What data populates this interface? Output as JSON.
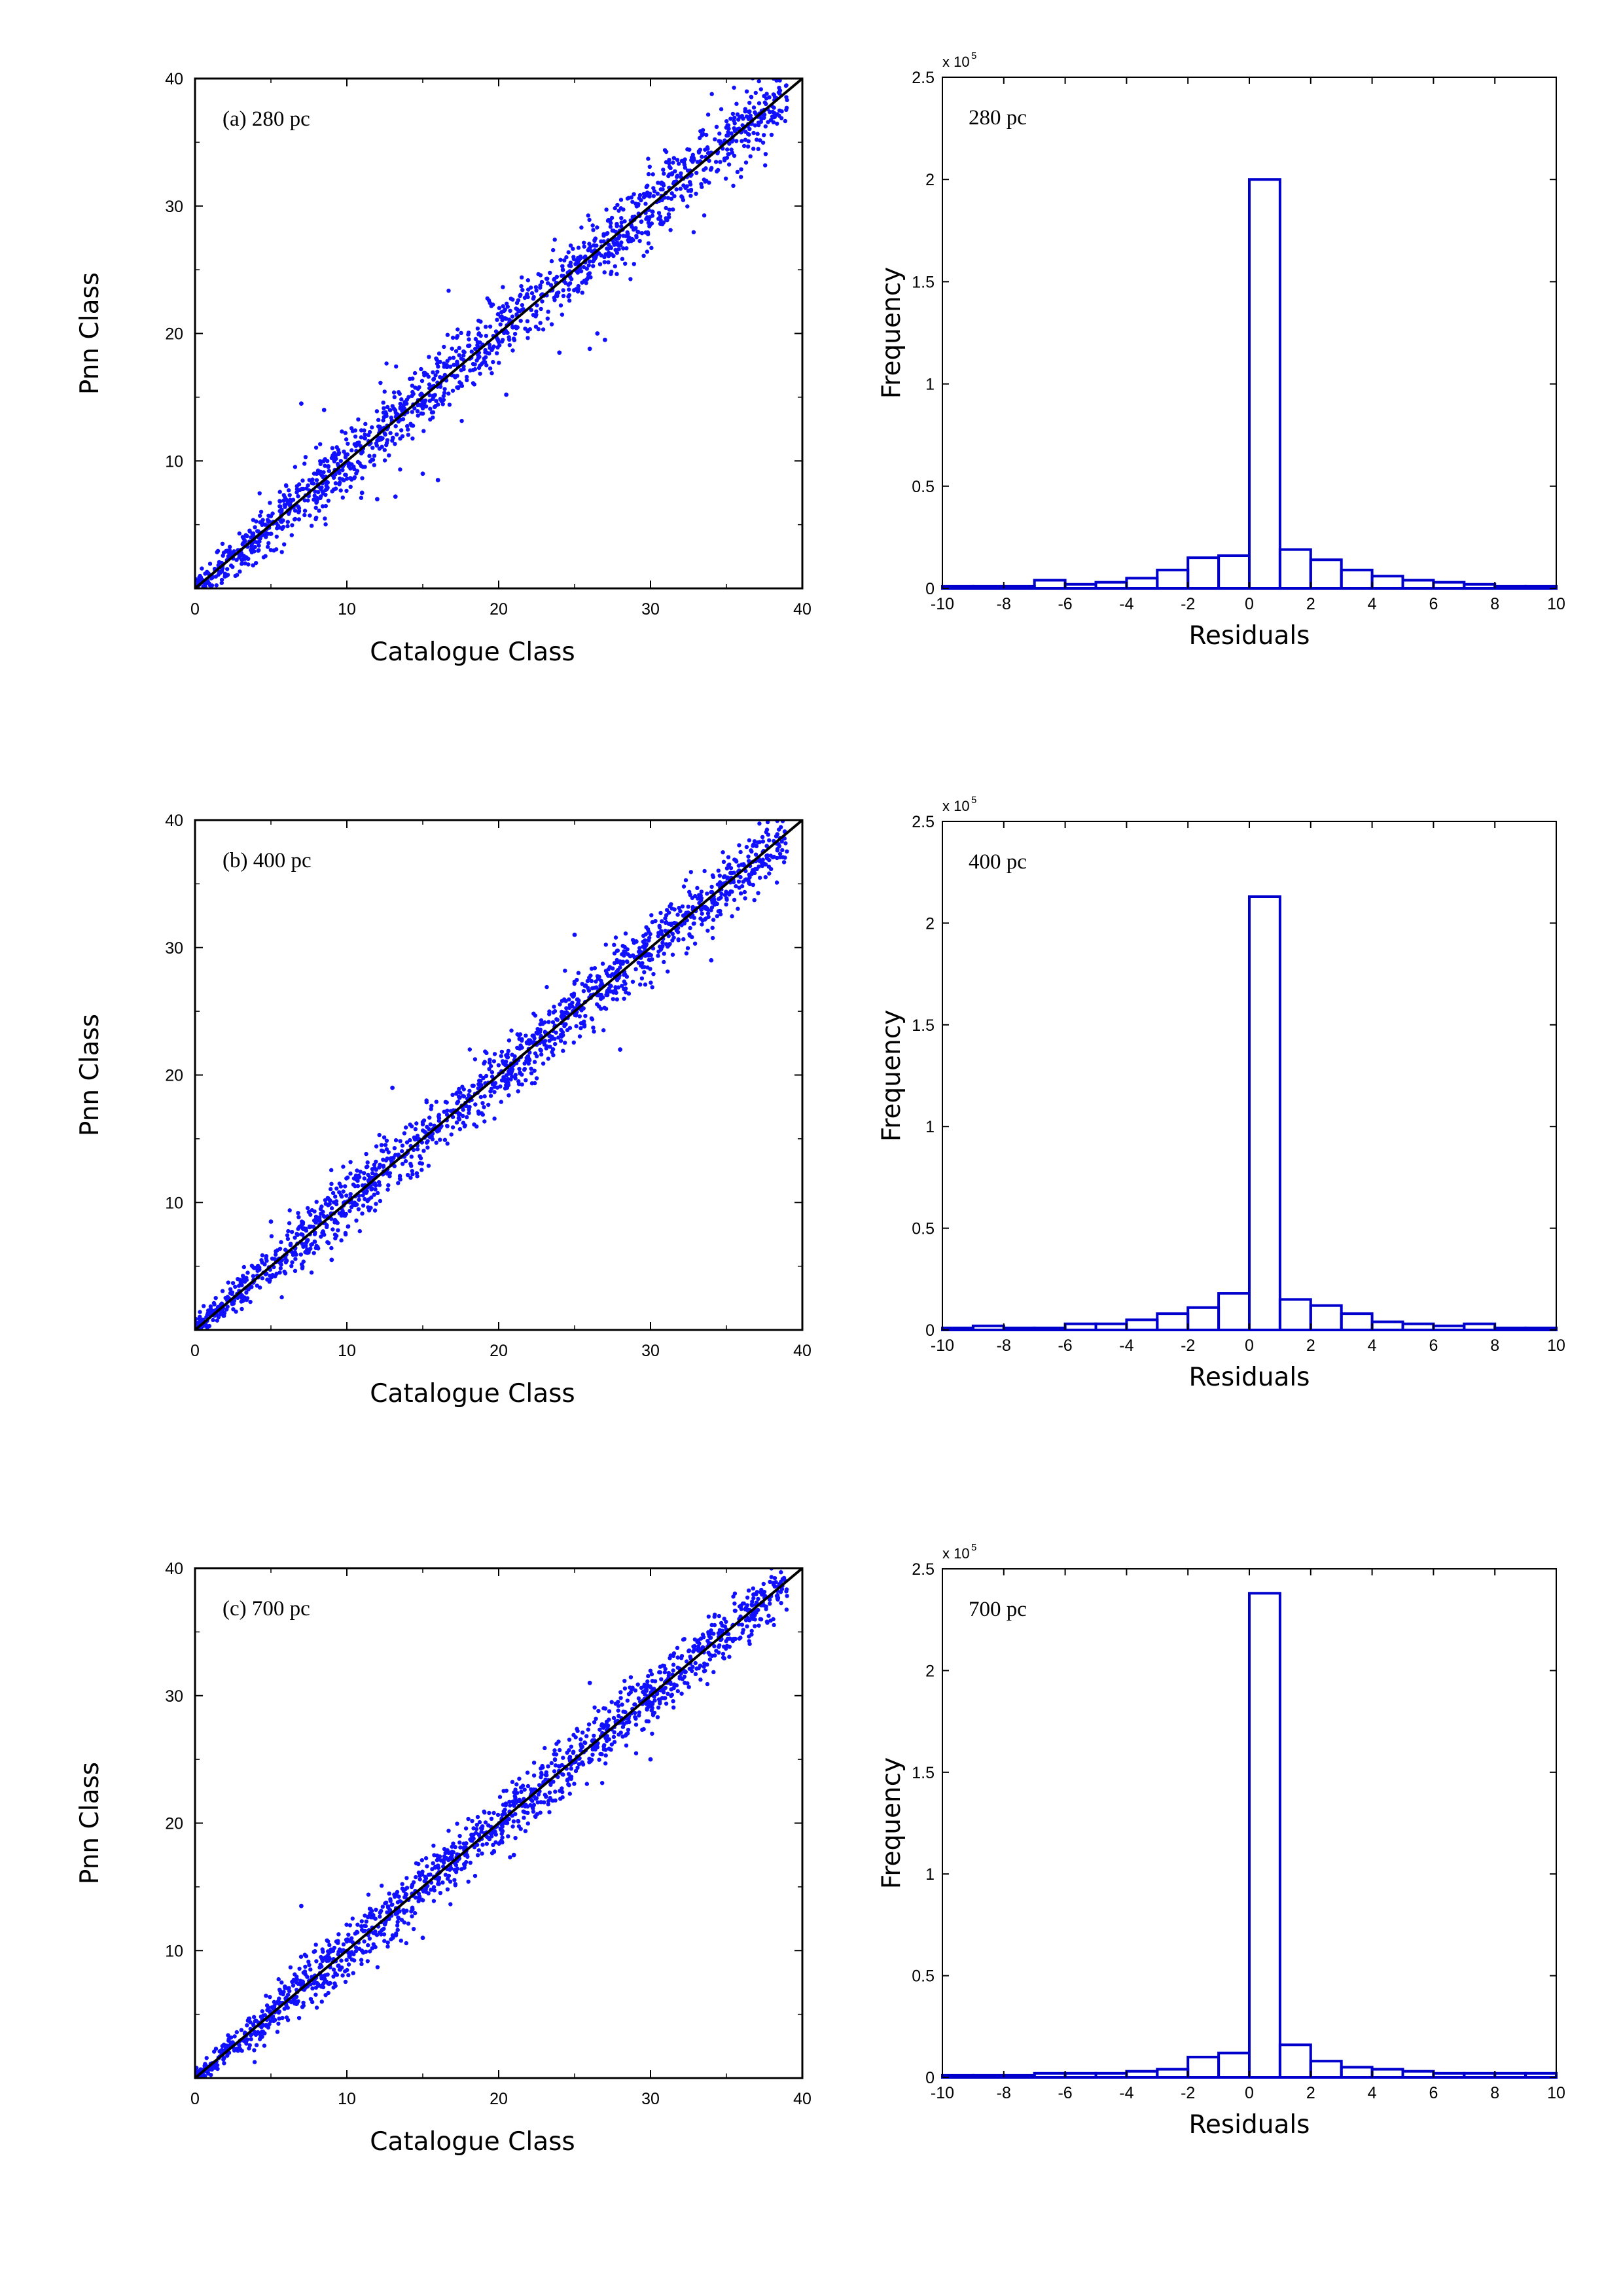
{
  "colors": {
    "points": "#1010ff",
    "bars": "#0000cc",
    "diagonal": "#000000"
  },
  "chart_data": [
    {
      "type": "scatter",
      "panel_label": "(a)  280  pc",
      "xlabel": "Catalogue Class",
      "ylabel": "Pnn Class",
      "xlim": [
        0,
        40
      ],
      "ylim": [
        0,
        40
      ],
      "xticks": [
        "0",
        "10",
        "20",
        "30",
        "40"
      ],
      "yticks": [
        "10",
        "20",
        "30",
        "40"
      ],
      "reference_line": {
        "from": [
          0,
          0
        ],
        "to": [
          40,
          40
        ]
      },
      "point_cloud": {
        "count": 1500,
        "center_line": "y = x",
        "spread_sd": 1.4,
        "x_range": [
          0,
          39
        ]
      },
      "outliers": [
        {
          "x": 26.5,
          "y": 20.0
        },
        {
          "x": 26.0,
          "y": 18.8
        },
        {
          "x": 27.0,
          "y": 19.5
        },
        {
          "x": 12.0,
          "y": 7.0
        },
        {
          "x": 13.2,
          "y": 7.2
        },
        {
          "x": 16.0,
          "y": 8.5
        },
        {
          "x": 15.0,
          "y": 9.0
        },
        {
          "x": 20.5,
          "y": 15.2
        },
        {
          "x": 7.0,
          "y": 14.5
        },
        {
          "x": 8.5,
          "y": 14.0
        },
        {
          "x": 24.0,
          "y": 18.5
        },
        {
          "x": 11.0,
          "y": 7.5
        }
      ]
    },
    {
      "type": "bar",
      "panel_label": "280  pc",
      "xlabel": "Residuals",
      "ylabel": "Frequency",
      "y_multiplier": "x 10",
      "y_multiplier_exp": "5",
      "xlim": [
        -10,
        10
      ],
      "ylim": [
        0,
        2.5
      ],
      "xticks": [
        "-10",
        "-8",
        "-6",
        "-4",
        "-2",
        "0",
        "2",
        "4",
        "6",
        "8",
        "10"
      ],
      "yticks": [
        "0",
        "0.5",
        "1",
        "1.5",
        "2",
        "2.5"
      ],
      "bin_edges": [
        -10,
        -9,
        -8,
        -7,
        -6,
        -5,
        -4,
        -3,
        -2,
        -1,
        0,
        1,
        2,
        3,
        4,
        5,
        6,
        7,
        8,
        9,
        10
      ],
      "values": [
        0.01,
        0.01,
        0.01,
        0.04,
        0.02,
        0.03,
        0.05,
        0.09,
        0.15,
        0.16,
        2.0,
        0.19,
        0.14,
        0.09,
        0.06,
        0.04,
        0.03,
        0.02,
        0.01,
        0.01
      ]
    },
    {
      "type": "scatter",
      "panel_label": "(b)  400  pc",
      "xlabel": "Catalogue Class",
      "ylabel": "Pnn Class",
      "xlim": [
        0,
        40
      ],
      "ylim": [
        0,
        40
      ],
      "xticks": [
        "0",
        "10",
        "20",
        "30",
        "40"
      ],
      "yticks": [
        "10",
        "20",
        "30",
        "40"
      ],
      "reference_line": {
        "from": [
          0,
          0
        ],
        "to": [
          40,
          40
        ]
      },
      "point_cloud": {
        "count": 1500,
        "center_line": "y = x",
        "spread_sd": 1.2,
        "x_range": [
          0,
          39
        ]
      },
      "outliers": [
        {
          "x": 5.0,
          "y": 8.5
        },
        {
          "x": 13.0,
          "y": 19.0
        },
        {
          "x": 28.0,
          "y": 22.0
        },
        {
          "x": 25.0,
          "y": 31.0
        },
        {
          "x": 9.0,
          "y": 5.5
        },
        {
          "x": 34.0,
          "y": 29.0
        }
      ]
    },
    {
      "type": "bar",
      "panel_label": "400  pc",
      "xlabel": "Residuals",
      "ylabel": "Frequency",
      "y_multiplier": "x 10",
      "y_multiplier_exp": "5",
      "xlim": [
        -10,
        10
      ],
      "ylim": [
        0,
        2.5
      ],
      "xticks": [
        "-10",
        "-8",
        "-6",
        "-4",
        "-2",
        "0",
        "2",
        "4",
        "6",
        "8",
        "10"
      ],
      "yticks": [
        "0",
        "0.5",
        "1",
        "1.5",
        "2",
        "2.5"
      ],
      "bin_edges": [
        -10,
        -9,
        -8,
        -7,
        -6,
        -5,
        -4,
        -3,
        -2,
        -1,
        0,
        1,
        2,
        3,
        4,
        5,
        6,
        7,
        8,
        9,
        10
      ],
      "values": [
        0.01,
        0.02,
        0.01,
        0.01,
        0.03,
        0.03,
        0.05,
        0.08,
        0.11,
        0.18,
        2.13,
        0.15,
        0.12,
        0.08,
        0.04,
        0.03,
        0.02,
        0.03,
        0.01,
        0.01
      ]
    },
    {
      "type": "scatter",
      "panel_label": "(c)  700  pc",
      "xlabel": "Catalogue Class",
      "ylabel": "Pnn Class",
      "xlim": [
        0,
        40
      ],
      "ylim": [
        0,
        40
      ],
      "xticks": [
        "0",
        "10",
        "20",
        "30",
        "40"
      ],
      "yticks": [
        "10",
        "20",
        "30",
        "40"
      ],
      "reference_line": {
        "from": [
          0,
          0
        ],
        "to": [
          40,
          40
        ]
      },
      "point_cloud": {
        "count": 1500,
        "center_line": "y = x",
        "spread_sd": 1.1,
        "x_range": [
          0,
          39
        ]
      },
      "outliers": [
        {
          "x": 7.0,
          "y": 13.5
        },
        {
          "x": 26.0,
          "y": 31.0
        },
        {
          "x": 30.0,
          "y": 25.0
        },
        {
          "x": 15.0,
          "y": 11.0
        },
        {
          "x": 21.0,
          "y": 17.5
        }
      ]
    },
    {
      "type": "bar",
      "panel_label": "700  pc",
      "xlabel": "Residuals",
      "ylabel": "Frequency",
      "y_multiplier": "x 10",
      "y_multiplier_exp": "5",
      "xlim": [
        -10,
        10
      ],
      "ylim": [
        0,
        2.5
      ],
      "xticks": [
        "-10",
        "-8",
        "-6",
        "-4",
        "-2",
        "0",
        "2",
        "4",
        "6",
        "8",
        "10"
      ],
      "yticks": [
        "0",
        "0.5",
        "1",
        "1.5",
        "2",
        "2.5"
      ],
      "bin_edges": [
        -10,
        -9,
        -8,
        -7,
        -6,
        -5,
        -4,
        -3,
        -2,
        -1,
        0,
        1,
        2,
        3,
        4,
        5,
        6,
        7,
        8,
        9,
        10
      ],
      "values": [
        0.01,
        0.01,
        0.01,
        0.02,
        0.02,
        0.02,
        0.03,
        0.04,
        0.1,
        0.12,
        2.38,
        0.16,
        0.08,
        0.05,
        0.04,
        0.03,
        0.02,
        0.02,
        0.02,
        0.02
      ]
    }
  ]
}
